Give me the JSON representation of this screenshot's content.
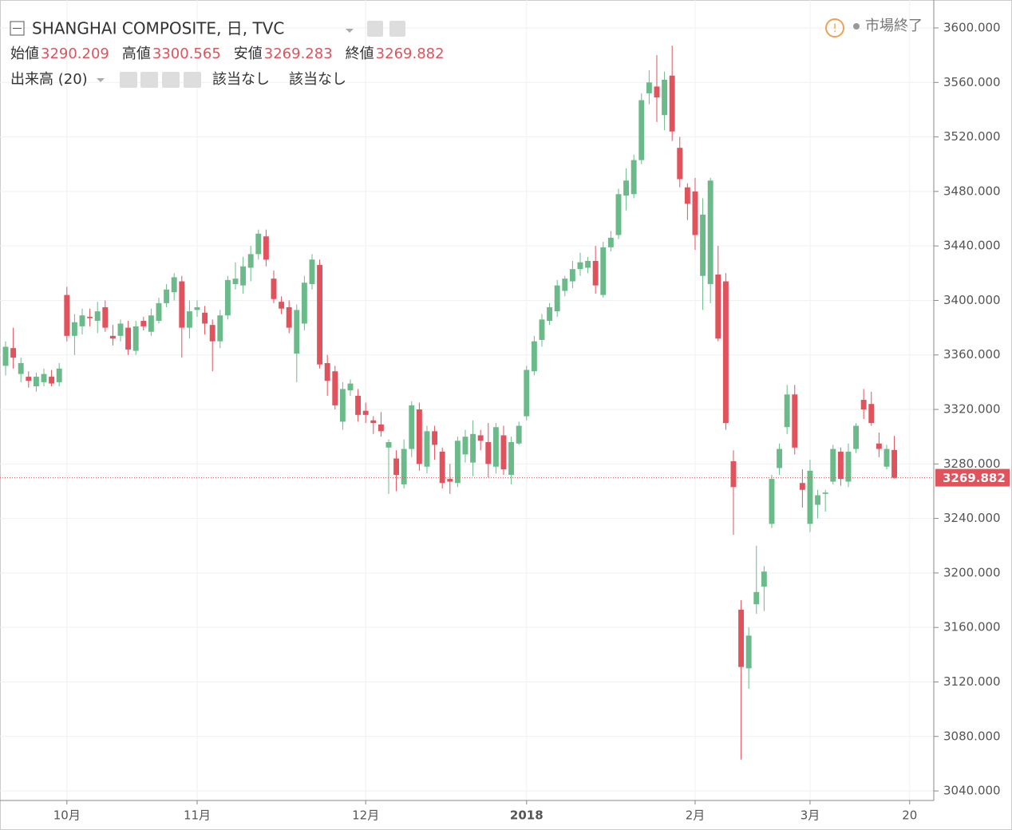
{
  "chart_data": {
    "type": "candlestick",
    "title": "SHANGHAI COMPOSITE, 日, TVC",
    "ohlc_labels": [
      "始値",
      "高値",
      "安値",
      "終値"
    ],
    "volume_label": "出来高 (20)",
    "na_labels": [
      "該当なし",
      "該当なし"
    ],
    "status": "市場終了",
    "up_color": "#6bbb8a",
    "down_color": "#e0525c",
    "grid": true,
    "open": [
      3352,
      3365,
      3346,
      3344,
      3337,
      3340,
      3344,
      3340,
      3404,
      3374,
      3381,
      3388,
      3385,
      3395,
      3374,
      3374,
      3380,
      3363,
      3385,
      3377,
      3385,
      3398,
      3406,
      3414,
      3380,
      3393,
      3391,
      3382,
      3370,
      3389,
      3412,
      3411,
      3424,
      3434,
      3447,
      3416,
      3399,
      3395,
      3361,
      3383,
      3412,
      3426,
      3354,
      3348,
      3311,
      3334,
      3330,
      3319,
      3312,
      3309,
      3292,
      3284,
      3265,
      3291,
      3320,
      3278,
      3304,
      3289,
      3269,
      3266,
      3287,
      3281,
      3301,
      3296,
      3278,
      3301,
      3272,
      3295,
      3315,
      3348,
      3371,
      3385,
      3392,
      3407,
      3414,
      3423,
      3424,
      3429,
      3404,
      3439,
      3448,
      3477,
      3478,
      3503,
      3552,
      3557,
      3536,
      3565,
      3512,
      3483,
      3480,
      3418,
      3412,
      3419,
      3414,
      3282,
      3173,
      3130,
      3177,
      3190,
      3236,
      3277,
      3307,
      3331,
      3266,
      3236,
      3250,
      3258,
      3267,
      3289,
      3267,
      3291,
      3327,
      3324,
      3295,
      3278,
      3290.209
    ],
    "high": [
      3370,
      3380,
      3358,
      3348,
      3347,
      3350,
      3349,
      3354,
      3410,
      3390,
      3394,
      3394,
      3399,
      3400,
      3382,
      3386,
      3385,
      3385,
      3388,
      3394,
      3402,
      3412,
      3420,
      3418,
      3400,
      3400,
      3396,
      3386,
      3393,
      3418,
      3428,
      3432,
      3440,
      3452,
      3452,
      3422,
      3403,
      3400,
      3397,
      3418,
      3434,
      3430,
      3360,
      3352,
      3340,
      3342,
      3335,
      3325,
      3315,
      3318,
      3298,
      3290,
      3298,
      3326,
      3325,
      3308,
      3308,
      3292,
      3280,
      3300,
      3305,
      3312,
      3305,
      3310,
      3310,
      3308,
      3300,
      3311,
      3352,
      3374,
      3390,
      3398,
      3415,
      3418,
      3429,
      3435,
      3432,
      3440,
      3443,
      3451,
      3482,
      3497,
      3507,
      3552,
      3569,
      3580,
      3568,
      3587,
      3520,
      3486,
      3490,
      3475,
      3490,
      3440,
      3420,
      3290,
      3180,
      3160,
      3220,
      3205,
      3272,
      3295,
      3338,
      3338,
      3276,
      3283,
      3261,
      3261,
      3294,
      3292,
      3295,
      3310,
      3335,
      3333,
      3303,
      3294,
      3300.565
    ],
    "low": [
      3345,
      3350,
      3340,
      3336,
      3333,
      3337,
      3337,
      3337,
      3370,
      3360,
      3375,
      3381,
      3376,
      3377,
      3367,
      3370,
      3360,
      3360,
      3378,
      3374,
      3383,
      3395,
      3400,
      3358,
      3372,
      3388,
      3375,
      3348,
      3365,
      3386,
      3408,
      3405,
      3414,
      3430,
      3425,
      3398,
      3390,
      3376,
      3340,
      3378,
      3408,
      3350,
      3330,
      3320,
      3305,
      3330,
      3311,
      3310,
      3302,
      3300,
      3258,
      3260,
      3262,
      3285,
      3275,
      3273,
      3283,
      3262,
      3258,
      3263,
      3281,
      3271,
      3290,
      3270,
      3273,
      3272,
      3265,
      3294,
      3312,
      3345,
      3366,
      3382,
      3388,
      3403,
      3409,
      3418,
      3420,
      3405,
      3402,
      3436,
      3445,
      3466,
      3475,
      3500,
      3544,
      3531,
      3525,
      3517,
      3483,
      3459,
      3437,
      3393,
      3398,
      3370,
      3305,
      3228,
      3063,
      3115,
      3170,
      3172,
      3233,
      3272,
      3302,
      3287,
      3248,
      3230,
      3240,
      3245,
      3265,
      3264,
      3263,
      3288,
      3313,
      3308,
      3285,
      3276,
      3269.283
    ],
    "close": [
      3366,
      3358,
      3354,
      3341,
      3344,
      3346,
      3339,
      3350,
      3374,
      3384,
      3389,
      3387,
      3392,
      3380,
      3372,
      3383,
      3364,
      3381,
      3381,
      3389,
      3398,
      3408,
      3417,
      3380,
      3392,
      3395,
      3383,
      3370,
      3389,
      3415,
      3416,
      3425,
      3434,
      3449,
      3430,
      3401,
      3394,
      3380,
      3393,
      3413,
      3430,
      3353,
      3341,
      3323,
      3335,
      3339,
      3316,
      3316,
      3310,
      3304,
      3296,
      3272,
      3291,
      3323,
      3280,
      3304,
      3294,
      3266,
      3267,
      3297,
      3300,
      3302,
      3297,
      3280,
      3307,
      3276,
      3296,
      3308,
      3349,
      3370,
      3386,
      3395,
      3411,
      3416,
      3423,
      3428,
      3429,
      3411,
      3439,
      3446,
      3478,
      3488,
      3503,
      3547,
      3560,
      3549,
      3562,
      3524,
      3489,
      3471,
      3448,
      3463,
      3488,
      3372,
      3310,
      3263,
      3131,
      3154,
      3186,
      3201,
      3269,
      3291,
      3331,
      3292,
      3261,
      3275,
      3257,
      3259,
      3291,
      3269,
      3289,
      3308,
      3320,
      3310,
      3291,
      3291,
      3269.882
    ],
    "xlim": [
      -0.73,
      121.15
    ],
    "xticks": [
      {
        "value": 8,
        "label": "10月"
      },
      {
        "value": 25,
        "label": "11月"
      },
      {
        "value": 47,
        "label": "12月"
      },
      {
        "value": 68,
        "label": "2018"
      },
      {
        "value": 90,
        "label": "2月"
      },
      {
        "value": 105,
        "label": "3月"
      },
      {
        "value": 118,
        "label": "20"
      }
    ],
    "ylim": [
      3033,
      3620.5
    ],
    "yticks": [
      {
        "value": 3040,
        "label": "3040.000"
      },
      {
        "value": 3080,
        "label": "3080.000"
      },
      {
        "value": 3120,
        "label": "3120.000"
      },
      {
        "value": 3160,
        "label": "3160.000"
      },
      {
        "value": 3200,
        "label": "3200.000"
      },
      {
        "value": 3240,
        "label": "3240.000"
      },
      {
        "value": 3280,
        "label": "3280.000"
      },
      {
        "value": 3320,
        "label": "3320.000"
      },
      {
        "value": 3360,
        "label": "3360.000"
      },
      {
        "value": 3400,
        "label": "3400.000"
      },
      {
        "value": 3440,
        "label": "3440.000"
      },
      {
        "value": 3480,
        "label": "3480.000"
      },
      {
        "value": 3520,
        "label": "3520.000"
      },
      {
        "value": 3560,
        "label": "3560.000"
      },
      {
        "value": 3600,
        "label": "3600.000"
      }
    ]
  }
}
